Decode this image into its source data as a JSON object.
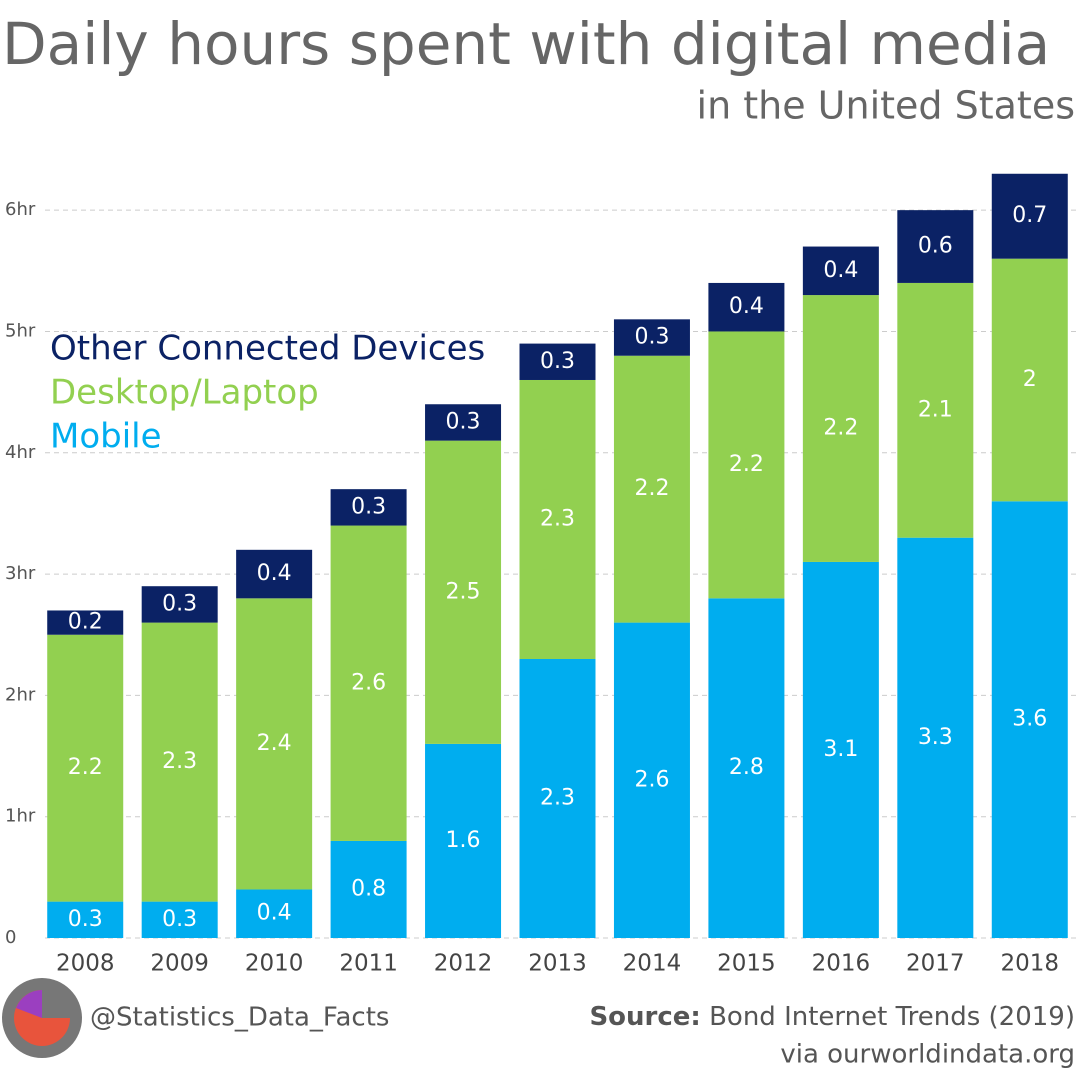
{
  "chart_data": {
    "type": "stacked_bar",
    "title": "Daily hours spent with digital media",
    "subtitle": "in the United States",
    "categories": [
      "2008",
      "2009",
      "2010",
      "2011",
      "2012",
      "2013",
      "2014",
      "2015",
      "2016",
      "2017",
      "2018"
    ],
    "series": [
      {
        "name": "Mobile",
        "color": "#00adef",
        "values": [
          0.3,
          0.3,
          0.4,
          0.8,
          1.6,
          2.3,
          2.6,
          2.8,
          3.1,
          3.3,
          3.6
        ]
      },
      {
        "name": "Desktop/Laptop",
        "color": "#92d050",
        "values": [
          2.2,
          2.3,
          2.4,
          2.6,
          2.5,
          2.3,
          2.2,
          2.2,
          2.2,
          2.1,
          2
        ]
      },
      {
        "name": "Other Connected Devices",
        "color": "#0b2265",
        "values": [
          0.2,
          0.3,
          0.4,
          0.3,
          0.3,
          0.3,
          0.3,
          0.4,
          0.4,
          0.6,
          0.7
        ]
      }
    ],
    "ylim": [
      0,
      6.5
    ],
    "yticks": [
      0,
      {
        "value": 1,
        "label": "1hr"
      },
      {
        "value": 2,
        "label": "2hr"
      },
      {
        "value": 3,
        "label": "3hr"
      },
      {
        "value": 4,
        "label": "4hr"
      },
      {
        "value": 5,
        "label": "5hr"
      },
      {
        "value": 6,
        "label": "6hr"
      }
    ],
    "grid": true,
    "legend": "top-left",
    "credit": "@Statistics_Data_Facts",
    "source_label": "Source:",
    "source": "Bond Internet Trends (2019)",
    "via": "via ourworldindata.org"
  }
}
